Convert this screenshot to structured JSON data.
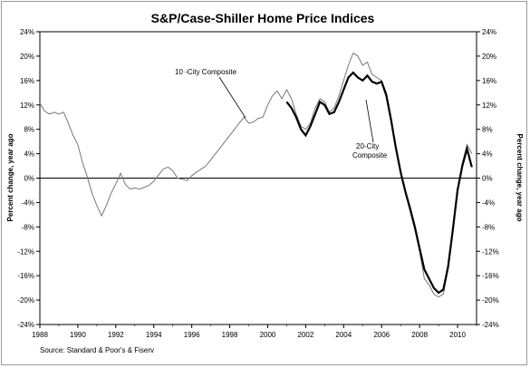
{
  "chart_data": {
    "type": "line",
    "title": "S&P/Case-Shiller Home Price Indices",
    "ylabel_left": "Percent change, year ago",
    "ylabel_right": "Percent change, year ago",
    "xlabel": "",
    "source": "Source: Standard & Poor's & Fiserv",
    "x_range": [
      1988,
      2011
    ],
    "x_ticks": [
      "1988",
      "1990",
      "1992",
      "1994",
      "1996",
      "1998",
      "2000",
      "2002",
      "2004",
      "2006",
      "2008",
      "2010"
    ],
    "ylim": [
      -24,
      24
    ],
    "y_ticks": [
      "-24%",
      "-20%",
      "-16%",
      "-12%",
      "-8%",
      "-4%",
      "0%",
      "4%",
      "8%",
      "12%",
      "16%",
      "20%",
      "24%"
    ],
    "annotations": {
      "ten_city": "10 -City Composite",
      "twenty_city_line1": "20-City",
      "twenty_city_line2": "Composite"
    },
    "colors": {
      "ten_city": "#777777",
      "twenty_city": "#000000"
    },
    "series": [
      {
        "name": "10 -City Composite",
        "x": [
          1988.0,
          1988.25,
          1988.5,
          1988.75,
          1989.0,
          1989.25,
          1989.5,
          1989.75,
          1990.0,
          1990.25,
          1990.5,
          1990.75,
          1991.0,
          1991.25,
          1991.5,
          1991.75,
          1992.0,
          1992.25,
          1992.5,
          1992.75,
          1993.0,
          1993.25,
          1993.5,
          1993.75,
          1994.0,
          1994.25,
          1994.5,
          1994.75,
          1995.0,
          1995.25,
          1995.5,
          1995.75,
          1996.0,
          1996.25,
          1996.5,
          1996.75,
          1997.0,
          1997.25,
          1997.5,
          1997.75,
          1998.0,
          1998.25,
          1998.5,
          1998.75,
          1999.0,
          1999.25,
          1999.5,
          1999.75,
          2000.0,
          2000.25,
          2000.5,
          2000.75,
          2001.0,
          2001.25,
          2001.5,
          2001.75,
          2002.0,
          2002.25,
          2002.5,
          2002.75,
          2003.0,
          2003.25,
          2003.5,
          2003.75,
          2004.0,
          2004.25,
          2004.5,
          2004.75,
          2005.0,
          2005.25,
          2005.5,
          2005.75,
          2006.0,
          2006.25,
          2006.5,
          2006.75,
          2007.0,
          2007.25,
          2007.5,
          2007.75,
          2008.0,
          2008.25,
          2008.5,
          2008.75,
          2009.0,
          2009.25,
          2009.5,
          2009.75,
          2010.0,
          2010.25,
          2010.5,
          2010.75
        ],
        "values": [
          12.3,
          11.0,
          10.5,
          10.8,
          10.5,
          10.8,
          9.0,
          7.0,
          5.5,
          2.5,
          0.2,
          -2.5,
          -4.5,
          -6.2,
          -4.5,
          -2.5,
          -1.0,
          0.8,
          -1.0,
          -1.8,
          -1.6,
          -1.8,
          -1.5,
          -1.2,
          -0.5,
          0.5,
          1.5,
          1.8,
          1.2,
          0.0,
          -0.2,
          -0.4,
          0.4,
          1.0,
          1.5,
          2.0,
          3.0,
          4.0,
          5.0,
          6.0,
          7.0,
          8.0,
          9.0,
          10.0,
          9.0,
          9.2,
          9.8,
          10.0,
          12.0,
          13.5,
          14.3,
          13.0,
          14.5,
          13.0,
          10.5,
          8.5,
          8.0,
          9.0,
          11.5,
          13.0,
          12.5,
          10.8,
          11.5,
          13.5,
          16.0,
          18.5,
          20.5,
          20.0,
          18.5,
          19.0,
          17.0,
          16.5,
          16.0,
          14.0,
          10.0,
          5.0,
          1.0,
          -2.5,
          -5.5,
          -8.5,
          -12.0,
          -16.5,
          -17.5,
          -19.0,
          -19.5,
          -19.0,
          -15.0,
          -9.0,
          -2.0,
          2.5,
          5.5,
          4.0
        ]
      },
      {
        "name": "20-City Composite",
        "x": [
          2001.0,
          2001.25,
          2001.5,
          2001.75,
          2002.0,
          2002.25,
          2002.5,
          2002.75,
          2003.0,
          2003.25,
          2003.5,
          2003.75,
          2004.0,
          2004.25,
          2004.5,
          2004.75,
          2005.0,
          2005.25,
          2005.5,
          2005.75,
          2006.0,
          2006.25,
          2006.5,
          2006.75,
          2007.0,
          2007.25,
          2007.5,
          2007.75,
          2008.0,
          2008.25,
          2008.5,
          2008.75,
          2009.0,
          2009.25,
          2009.5,
          2009.75,
          2010.0,
          2010.25,
          2010.5,
          2010.75
        ],
        "values": [
          12.5,
          11.5,
          10.0,
          8.0,
          7.0,
          8.5,
          10.5,
          12.5,
          12.0,
          10.5,
          10.8,
          12.5,
          14.5,
          16.5,
          17.3,
          16.5,
          16.0,
          16.8,
          15.8,
          15.5,
          15.8,
          13.5,
          9.5,
          5.0,
          1.0,
          -2.2,
          -5.0,
          -8.0,
          -11.5,
          -15.0,
          -16.5,
          -18.0,
          -18.8,
          -18.3,
          -14.5,
          -8.5,
          -2.0,
          2.0,
          4.8,
          1.8
        ]
      }
    ]
  }
}
